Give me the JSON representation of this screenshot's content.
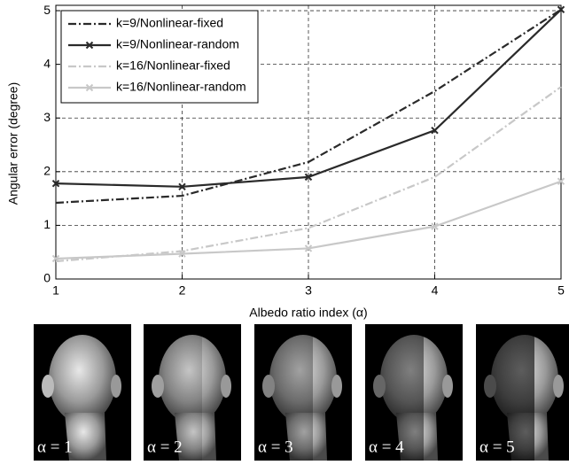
{
  "chart_data": {
    "type": "line",
    "x_label": "Albedo ratio index (α)",
    "y_label": "Angular error (degree)",
    "x": [
      1,
      2,
      3,
      4,
      5
    ],
    "xlim": [
      1,
      5
    ],
    "xticks": [
      1,
      2,
      3,
      4,
      5
    ],
    "ylim": [
      0,
      5.1
    ],
    "yticks": [
      0,
      1,
      2,
      3,
      4,
      5
    ],
    "grid": true,
    "legend": "upper-left",
    "series": [
      {
        "name": "k=9/Nonlinear-fixed",
        "color": "#2a2a2a",
        "line_style": "dashdot",
        "marker": "none",
        "values": [
          1.42,
          1.55,
          2.18,
          3.5,
          5.02
        ]
      },
      {
        "name": "k=9/Nonlinear-random",
        "color": "#2a2a2a",
        "line_style": "solid",
        "marker": "x",
        "values": [
          1.78,
          1.72,
          1.9,
          2.77,
          5.02
        ]
      },
      {
        "name": "k=16/Nonlinear-fixed",
        "color": "#c8c8c8",
        "line_style": "dashdot",
        "marker": "none",
        "values": [
          0.33,
          0.52,
          0.95,
          1.9,
          3.58
        ]
      },
      {
        "name": "k=16/Nonlinear-random",
        "color": "#c8c8c8",
        "line_style": "solid",
        "marker": "x",
        "values": [
          0.38,
          0.47,
          0.57,
          0.98,
          1.82
        ]
      }
    ]
  },
  "panels": [
    {
      "label": "α = 1"
    },
    {
      "label": "α = 2"
    },
    {
      "label": "α = 3"
    },
    {
      "label": "α = 4"
    },
    {
      "label": "α = 5"
    }
  ]
}
